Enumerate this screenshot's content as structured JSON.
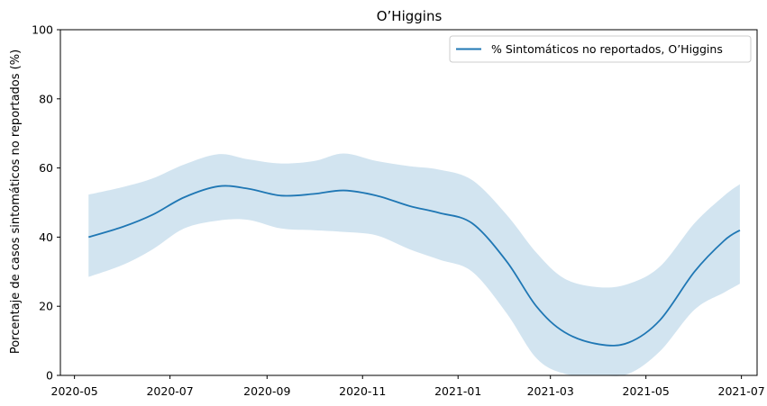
{
  "chart_data": {
    "type": "line",
    "title": "O’Higgins",
    "xlabel": "",
    "ylabel": "Porcentaje de casos sintomáticos no reportados (%)",
    "ylim": [
      0,
      100
    ],
    "xlim": [
      "2020-04-22",
      "2021-07-11"
    ],
    "y_ticks": [
      0,
      20,
      40,
      60,
      80,
      100
    ],
    "x_ticks": [
      "2020-05",
      "2020-07",
      "2020-09",
      "2020-11",
      "2021-01",
      "2021-03",
      "2021-05",
      "2021-07"
    ],
    "x_tick_dates": [
      "2020-05-01",
      "2020-07-01",
      "2020-09-01",
      "2020-11-01",
      "2021-01-01",
      "2021-03-01",
      "2021-05-01",
      "2021-07-01"
    ],
    "grid": false,
    "legend": {
      "position": "top-right"
    },
    "series": [
      {
        "name": "% Sintomáticos no reportados, O’Higgins",
        "color": "#1f77b4",
        "band_color": "#1f77b4",
        "points": [
          {
            "x": "2020-05-10",
            "y": 40.0,
            "lower": 28.5,
            "upper": 52.3
          },
          {
            "x": "2020-06-01",
            "y": 43.0,
            "lower": 32.0,
            "upper": 54.5
          },
          {
            "x": "2020-06-20",
            "y": 46.5,
            "lower": 36.5,
            "upper": 57.0
          },
          {
            "x": "2020-07-10",
            "y": 51.5,
            "lower": 42.5,
            "upper": 61.0
          },
          {
            "x": "2020-08-01",
            "y": 54.7,
            "lower": 44.8,
            "upper": 64.0
          },
          {
            "x": "2020-08-20",
            "y": 54.0,
            "lower": 45.0,
            "upper": 62.5
          },
          {
            "x": "2020-09-10",
            "y": 52.0,
            "lower": 42.5,
            "upper": 61.3
          },
          {
            "x": "2020-10-01",
            "y": 52.5,
            "lower": 42.0,
            "upper": 62.0
          },
          {
            "x": "2020-10-20",
            "y": 53.5,
            "lower": 41.5,
            "upper": 64.2
          },
          {
            "x": "2020-11-10",
            "y": 52.0,
            "lower": 40.5,
            "upper": 62.0
          },
          {
            "x": "2020-12-01",
            "y": 49.0,
            "lower": 36.5,
            "upper": 60.5
          },
          {
            "x": "2020-12-20",
            "y": 47.0,
            "lower": 33.5,
            "upper": 59.5
          },
          {
            "x": "2021-01-10",
            "y": 44.0,
            "lower": 30.0,
            "upper": 56.5
          },
          {
            "x": "2021-02-01",
            "y": 33.0,
            "lower": 18.0,
            "upper": 46.5
          },
          {
            "x": "2021-02-20",
            "y": 20.0,
            "lower": 5.0,
            "upper": 35.5
          },
          {
            "x": "2021-03-10",
            "y": 12.5,
            "lower": 0.5,
            "upper": 28.0
          },
          {
            "x": "2021-04-01",
            "y": 9.0,
            "lower": 0.0,
            "upper": 25.5
          },
          {
            "x": "2021-04-20",
            "y": 9.5,
            "lower": 0.5,
            "upper": 26.5
          },
          {
            "x": "2021-05-10",
            "y": 16.0,
            "lower": 7.0,
            "upper": 31.5
          },
          {
            "x": "2021-06-01",
            "y": 30.0,
            "lower": 19.0,
            "upper": 44.0
          },
          {
            "x": "2021-06-20",
            "y": 39.0,
            "lower": 24.0,
            "upper": 52.0
          },
          {
            "x": "2021-06-30",
            "y": 42.0,
            "lower": 26.5,
            "upper": 55.3
          }
        ]
      }
    ]
  }
}
